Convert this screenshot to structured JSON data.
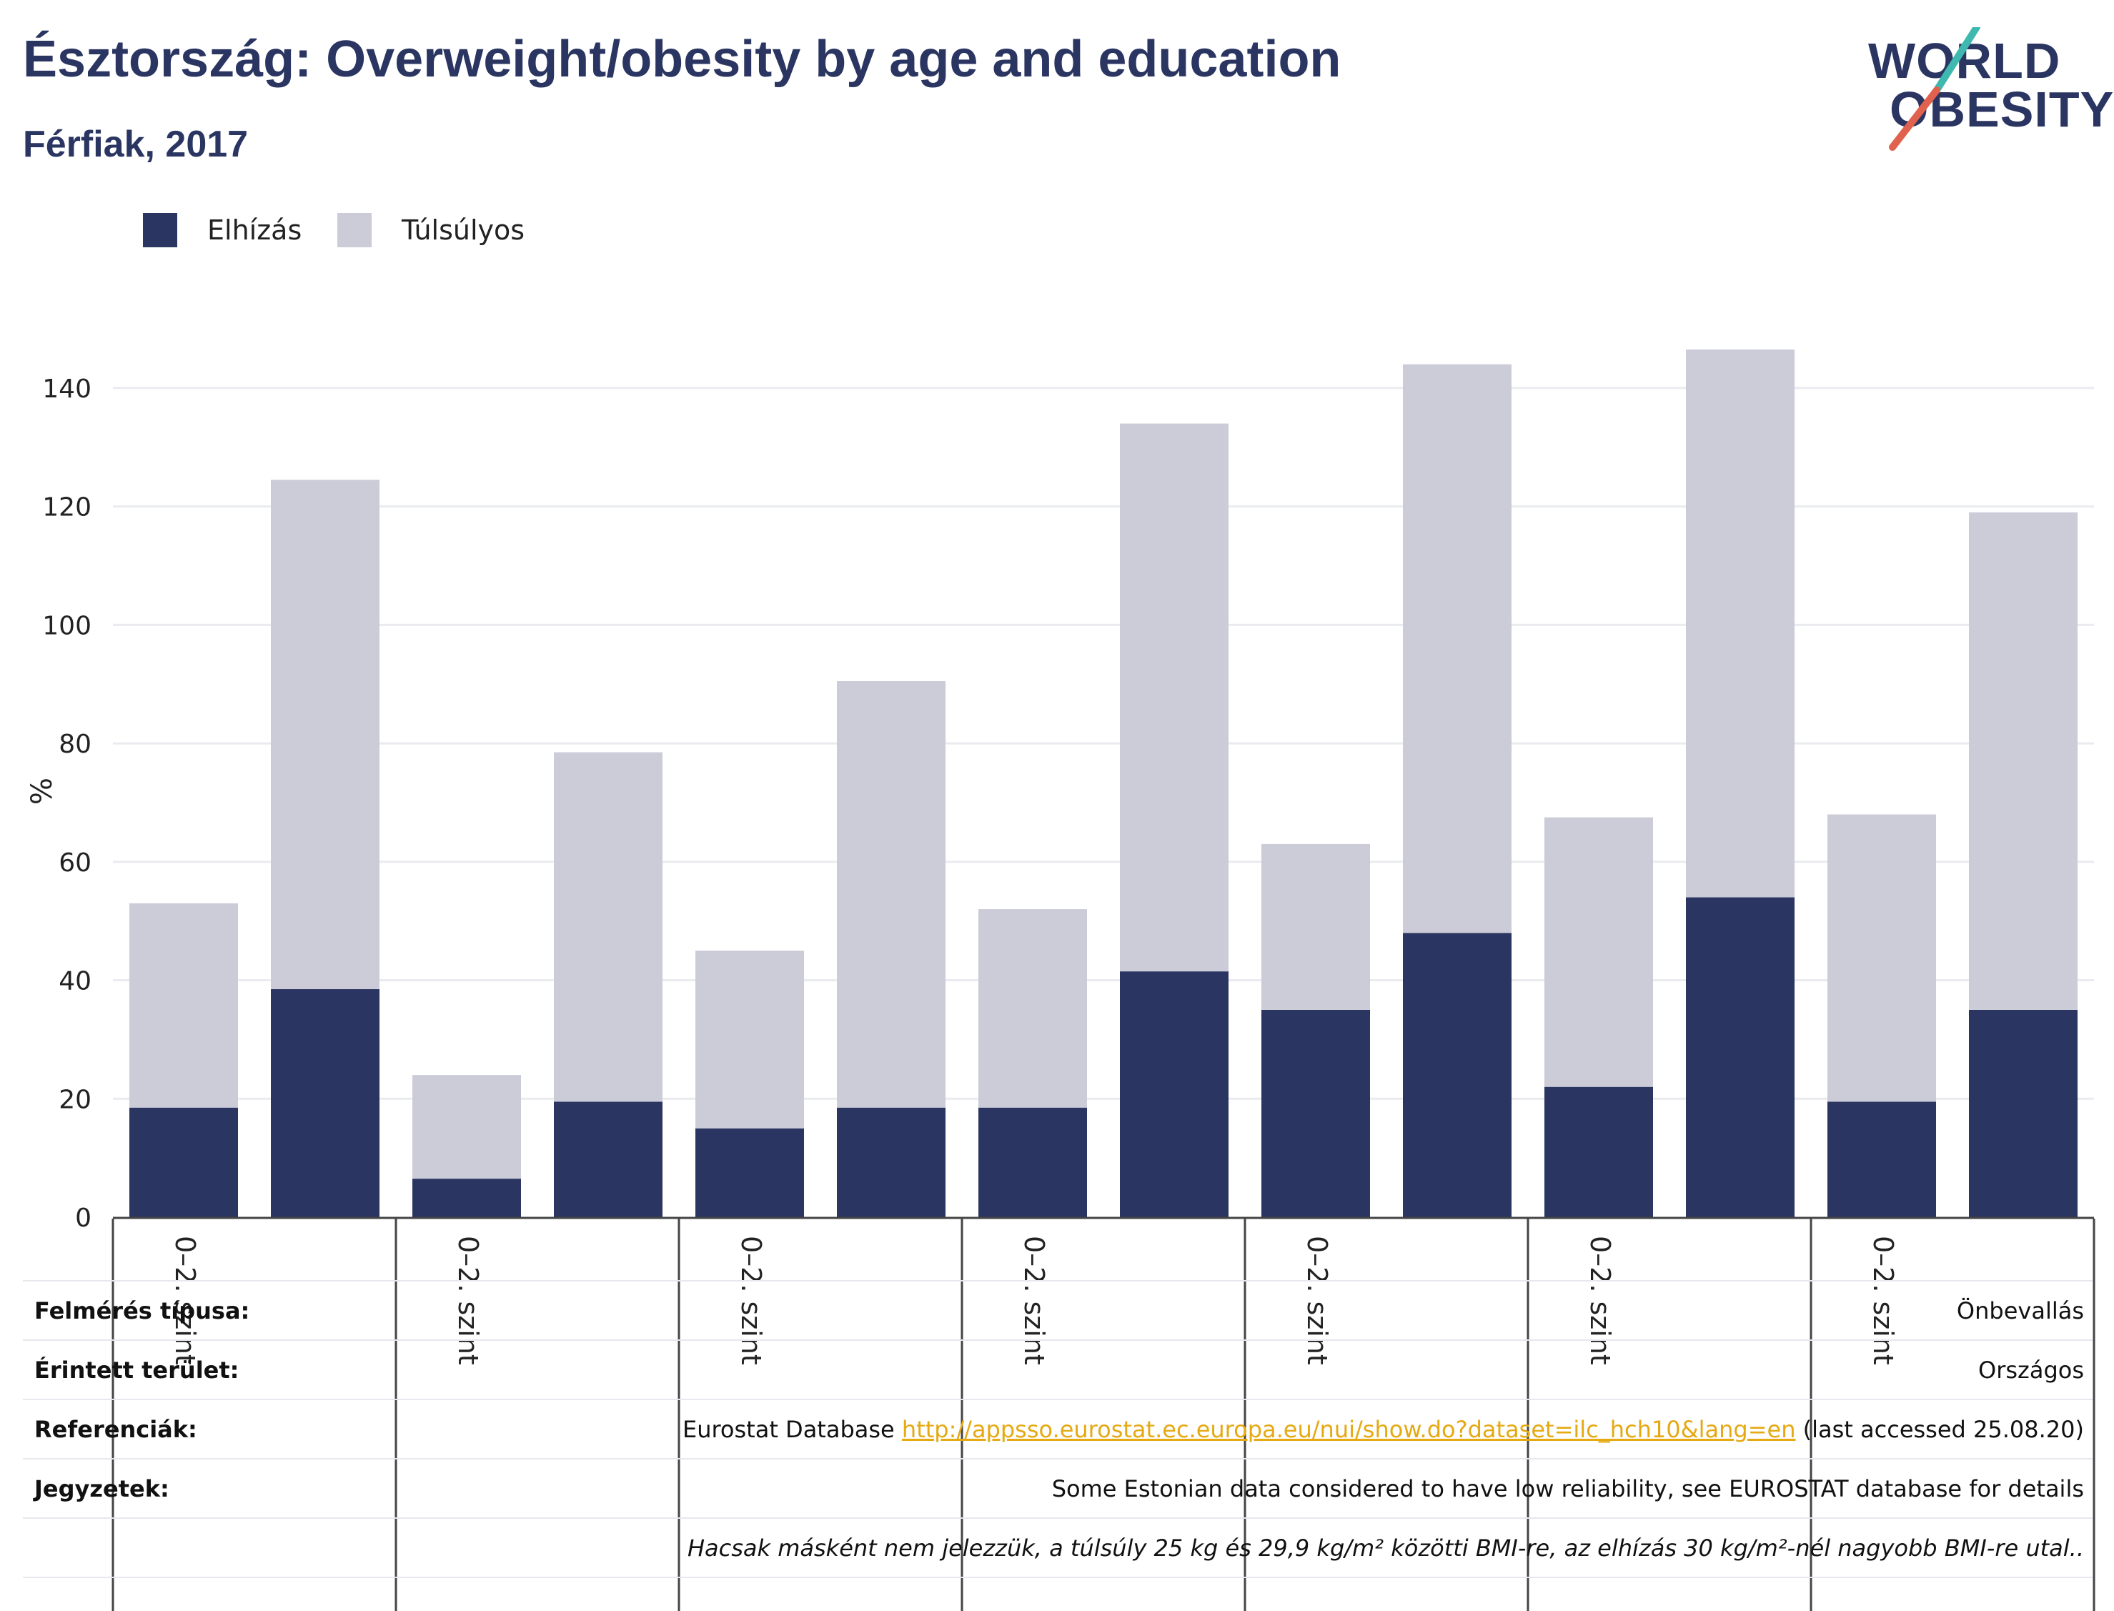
{
  "header": {
    "title": "Észtország: Overweight/obesity by age and education",
    "subtitle": "Férfiak, 2017"
  },
  "logo": {
    "line1": "WORLD",
    "line2": "OBESITY",
    "colors": {
      "text": "#2a3561",
      "slash_top": "#3fb8b0",
      "slash_bottom": "#e0624e"
    }
  },
  "legend": {
    "items": [
      {
        "label": "Elhízás",
        "color": "#2a3561"
      },
      {
        "label": "Túlsúlyos",
        "color": "#cbccd8"
      }
    ]
  },
  "chart_data": {
    "type": "bar",
    "stacked": true,
    "ylabel": "%",
    "ylim": [
      0,
      150
    ],
    "yticks": [
      0,
      20,
      40,
      60,
      80,
      100,
      120,
      140
    ],
    "grid": true,
    "legend_position": "top-left",
    "group_labels": [
      "0–2. szint",
      "0–2. szint",
      "0–2. szint",
      "0–2. szint",
      "0–2. szint",
      "0–2. szint",
      "0–2. szint"
    ],
    "series": [
      {
        "name": "Elhízás",
        "color": "#2a3561",
        "values": [
          18.5,
          38.5,
          6.5,
          19.5,
          15,
          18.5,
          18.5,
          41.5,
          35,
          48,
          22,
          54,
          19.5,
          35
        ]
      },
      {
        "name": "Túlsúlyos",
        "color": "#cbccd8",
        "values": [
          34.5,
          86,
          17.5,
          59,
          30,
          72,
          33.5,
          92.5,
          28,
          96,
          45.5,
          92.5,
          48.5,
          84
        ]
      }
    ]
  },
  "meta": {
    "rows": [
      {
        "label": "Felmérés típusa:",
        "value": "Önbevallás"
      },
      {
        "label": "Érintett terület:",
        "value": "Országos"
      },
      {
        "label": "Referenciák:",
        "value_prefix": "Eurostat Database ",
        "link": "http://appsso.eurostat.ec.europa.eu/nui/show.do?dataset=ilc_hch10&lang=en",
        "value_suffix": " (last accessed 25.08.20)"
      },
      {
        "label": "Jegyzetek:",
        "value": "Some Estonian data considered to have low reliability, see EUROSTAT database for details"
      },
      {
        "label": "",
        "value": "Hacsak másként nem jelezzük, a túlsúly 25 kg és 29,9 kg/m² közötti BMI-re, az elhízás 30 kg/m²-nél nagyobb BMI-re utal.."
      }
    ]
  }
}
